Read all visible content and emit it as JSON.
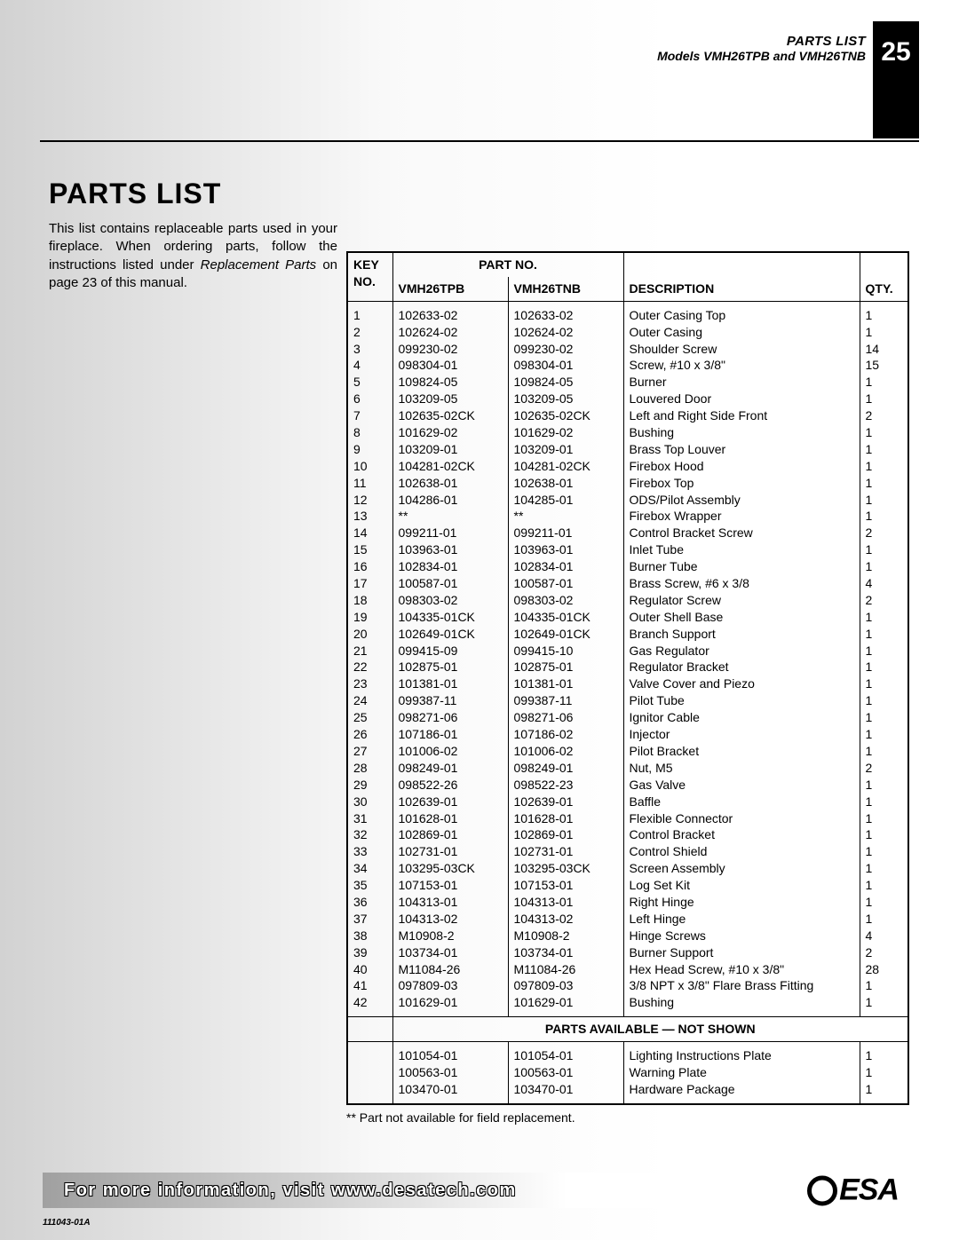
{
  "header": {
    "page_number": "25",
    "line1": "PARTS LIST",
    "line2": "Models VMH26TPB and VMH26TNB"
  },
  "title": "PARTS LIST",
  "intro": {
    "text_before": "This list contains replaceable parts used in your fireplace. When ordering parts, follow the instructions listed under ",
    "italic": "Replacement Parts",
    "text_after": " on page 23 of this manual."
  },
  "table": {
    "columns": {
      "key_label_top": "KEY",
      "key_label_bot": "NO.",
      "partno_label": "PART NO.",
      "pn1_label": "VMH26TPB",
      "pn2_label": "VMH26TNB",
      "desc_label": "DESCRIPTION",
      "qty_label": "QTY."
    },
    "rows": [
      {
        "key": "1",
        "pn1": "102633-02",
        "pn2": "102633-02",
        "desc": "Outer Casing Top",
        "qty": "1"
      },
      {
        "key": "2",
        "pn1": "102624-02",
        "pn2": "102624-02",
        "desc": "Outer Casing",
        "qty": "1"
      },
      {
        "key": "3",
        "pn1": "099230-02",
        "pn2": "099230-02",
        "desc": "Shoulder Screw",
        "qty": "14"
      },
      {
        "key": "4",
        "pn1": "098304-01",
        "pn2": "098304-01",
        "desc": "Screw, #10 x 3/8\"",
        "qty": "15"
      },
      {
        "key": "5",
        "pn1": "109824-05",
        "pn2": "109824-05",
        "desc": "Burner",
        "qty": "1"
      },
      {
        "key": "6",
        "pn1": "103209-05",
        "pn2": "103209-05",
        "desc": "Louvered Door",
        "qty": "1"
      },
      {
        "key": "7",
        "pn1": "102635-02CK",
        "pn2": "102635-02CK",
        "desc": "Left and Right Side Front",
        "qty": "2"
      },
      {
        "key": "8",
        "pn1": "101629-02",
        "pn2": "101629-02",
        "desc": "Bushing",
        "qty": "1"
      },
      {
        "key": "9",
        "pn1": "103209-01",
        "pn2": "103209-01",
        "desc": "Brass Top Louver",
        "qty": "1"
      },
      {
        "key": "10",
        "pn1": "104281-02CK",
        "pn2": "104281-02CK",
        "desc": "Firebox Hood",
        "qty": "1"
      },
      {
        "key": "11",
        "pn1": "102638-01",
        "pn2": "102638-01",
        "desc": "Firebox Top",
        "qty": "1"
      },
      {
        "key": "12",
        "pn1": "104286-01",
        "pn2": "104285-01",
        "desc": "ODS/Pilot Assembly",
        "qty": "1"
      },
      {
        "key": "13",
        "pn1": "**",
        "pn2": "**",
        "desc": "Firebox Wrapper",
        "qty": "1"
      },
      {
        "key": "14",
        "pn1": "099211-01",
        "pn2": "099211-01",
        "desc": "Control Bracket Screw",
        "qty": "2"
      },
      {
        "key": "15",
        "pn1": "103963-01",
        "pn2": "103963-01",
        "desc": "Inlet Tube",
        "qty": "1"
      },
      {
        "key": "16",
        "pn1": "102834-01",
        "pn2": "102834-01",
        "desc": "Burner Tube",
        "qty": "1"
      },
      {
        "key": "17",
        "pn1": "100587-01",
        "pn2": "100587-01",
        "desc": "Brass Screw, #6 x 3/8",
        "qty": "4"
      },
      {
        "key": "18",
        "pn1": "098303-02",
        "pn2": "098303-02",
        "desc": "Regulator Screw",
        "qty": "2"
      },
      {
        "key": "19",
        "pn1": "104335-01CK",
        "pn2": "104335-01CK",
        "desc": "Outer Shell Base",
        "qty": "1"
      },
      {
        "key": "20",
        "pn1": "102649-01CK",
        "pn2": "102649-01CK",
        "desc": "Branch Support",
        "qty": "1"
      },
      {
        "key": "21",
        "pn1": "099415-09",
        "pn2": "099415-10",
        "desc": "Gas Regulator",
        "qty": "1"
      },
      {
        "key": "22",
        "pn1": "102875-01",
        "pn2": "102875-01",
        "desc": "Regulator Bracket",
        "qty": "1"
      },
      {
        "key": "23",
        "pn1": "101381-01",
        "pn2": "101381-01",
        "desc": "Valve Cover and Piezo",
        "qty": "1"
      },
      {
        "key": "24",
        "pn1": "099387-11",
        "pn2": "099387-11",
        "desc": "Pilot Tube",
        "qty": "1"
      },
      {
        "key": "25",
        "pn1": "098271-06",
        "pn2": "098271-06",
        "desc": "Ignitor Cable",
        "qty": "1"
      },
      {
        "key": "26",
        "pn1": "107186-01",
        "pn2": "107186-02",
        "desc": "Injector",
        "qty": "1"
      },
      {
        "key": "27",
        "pn1": "101006-02",
        "pn2": "101006-02",
        "desc": "Pilot Bracket",
        "qty": "1"
      },
      {
        "key": "28",
        "pn1": "098249-01",
        "pn2": "098249-01",
        "desc": "Nut, M5",
        "qty": "2"
      },
      {
        "key": "29",
        "pn1": "098522-26",
        "pn2": "098522-23",
        "desc": "Gas Valve",
        "qty": "1"
      },
      {
        "key": "30",
        "pn1": "102639-01",
        "pn2": "102639-01",
        "desc": "Baffle",
        "qty": "1"
      },
      {
        "key": "31",
        "pn1": "101628-01",
        "pn2": "101628-01",
        "desc": "Flexible Connector",
        "qty": "1"
      },
      {
        "key": "32",
        "pn1": "102869-01",
        "pn2": "102869-01",
        "desc": "Control Bracket",
        "qty": "1"
      },
      {
        "key": "33",
        "pn1": "102731-01",
        "pn2": "102731-01",
        "desc": "Control Shield",
        "qty": "1"
      },
      {
        "key": "34",
        "pn1": "103295-03CK",
        "pn2": "103295-03CK",
        "desc": "Screen Assembly",
        "qty": "1"
      },
      {
        "key": "35",
        "pn1": "107153-01",
        "pn2": "107153-01",
        "desc": "Log Set Kit",
        "qty": "1"
      },
      {
        "key": "36",
        "pn1": "104313-01",
        "pn2": "104313-01",
        "desc": "Right Hinge",
        "qty": "1"
      },
      {
        "key": "37",
        "pn1": "104313-02",
        "pn2": "104313-02",
        "desc": "Left Hinge",
        "qty": "1"
      },
      {
        "key": "38",
        "pn1": "M10908-2",
        "pn2": "M10908-2",
        "desc": "Hinge Screws",
        "qty": "4"
      },
      {
        "key": "39",
        "pn1": "103734-01",
        "pn2": "103734-01",
        "desc": "Burner Support",
        "qty": "2"
      },
      {
        "key": "40",
        "pn1": "M11084-26",
        "pn2": "M11084-26",
        "desc": "Hex Head Screw, #10 x 3/8\"",
        "qty": "28"
      },
      {
        "key": "41",
        "pn1": "097809-03",
        "pn2": "097809-03",
        "desc": "3/8 NPT x 3/8\" Flare Brass Fitting",
        "qty": "1"
      },
      {
        "key": "42",
        "pn1": "101629-01",
        "pn2": "101629-01",
        "desc": "Bushing",
        "qty": "1"
      }
    ],
    "sep_label": "PARTS AVAILABLE — NOT SHOWN",
    "extra_rows": [
      {
        "key": "",
        "pn1": "101054-01",
        "pn2": "101054-01",
        "desc": "Lighting Instructions Plate",
        "qty": "1"
      },
      {
        "key": "",
        "pn1": "100563-01",
        "pn2": "100563-01",
        "desc": "Warning Plate",
        "qty": "1"
      },
      {
        "key": "",
        "pn1": "103470-01",
        "pn2": "103470-01",
        "desc": "Hardware Package",
        "qty": "1"
      }
    ]
  },
  "footnote": "** Part not available for field replacement.",
  "footer": {
    "text": "For more information, visit www.desatech.com",
    "logo_text": "ESA"
  },
  "doccode": "111043-01A"
}
